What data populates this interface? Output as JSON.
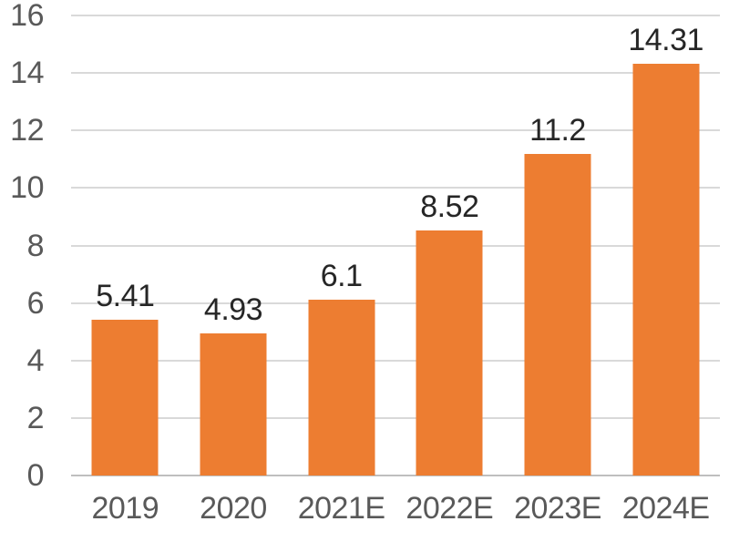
{
  "chart_data": {
    "type": "bar",
    "title": "",
    "xlabel": "",
    "ylabel": "",
    "categories": [
      "2019",
      "2020",
      "2021E",
      "2022E",
      "2023E",
      "2024E"
    ],
    "values": [
      5.41,
      4.93,
      6.1,
      8.52,
      11.2,
      14.31
    ],
    "value_labels": [
      "5.41",
      "4.93",
      "6.1",
      "8.52",
      "11.2",
      "14.31"
    ],
    "ylim": [
      0,
      16
    ],
    "yticks": [
      0,
      2,
      4,
      6,
      8,
      10,
      12,
      14,
      16
    ],
    "grid": "horizontal",
    "legend": "none",
    "colors": {
      "bar": "#ED7D31",
      "gridline": "#D9D9D9",
      "axis_line": "#BFBFBF",
      "tick_label": "#595959",
      "data_label": "#262626",
      "background": "#FFFFFF"
    }
  }
}
